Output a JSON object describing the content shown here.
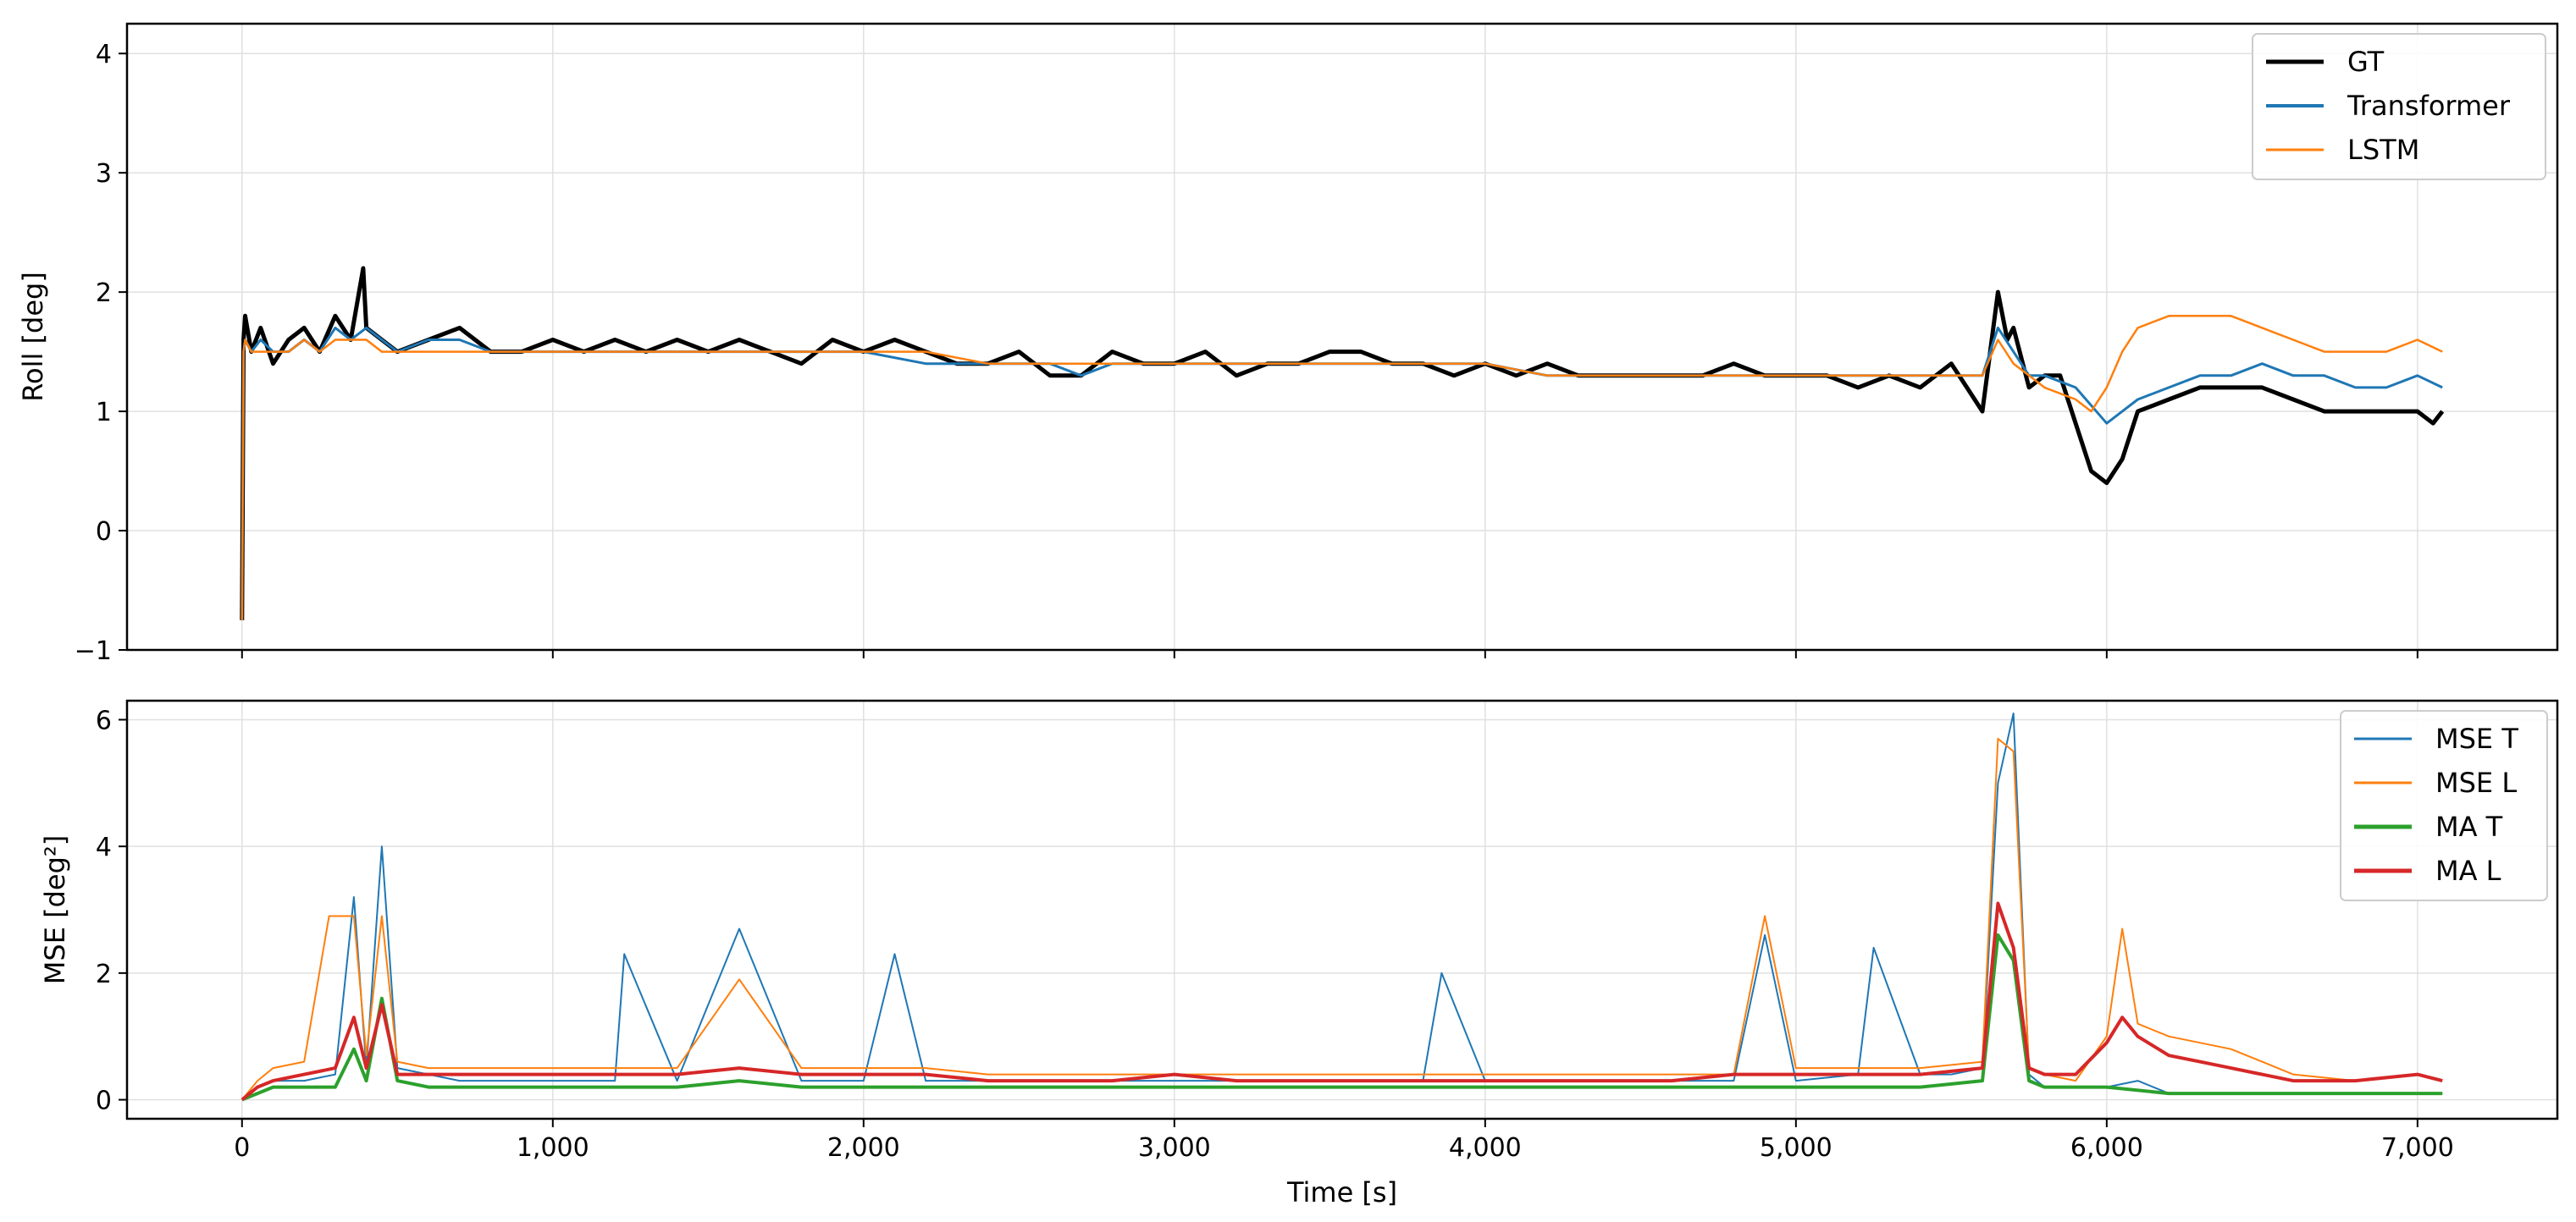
{
  "chart_data": [
    {
      "type": "line",
      "title": "",
      "xlabel": "",
      "ylabel": "Roll [deg]",
      "xlim": [
        -370,
        7450
      ],
      "ylim": [
        -1,
        4.25
      ],
      "grid": true,
      "legend_position": "top-right",
      "x_ticks": [
        0,
        1000,
        2000,
        3000,
        4000,
        5000,
        6000,
        7000
      ],
      "x_tick_labels": [
        "",
        "",
        "",
        "",
        "",
        "",
        "",
        ""
      ],
      "y_ticks": [
        -1,
        0,
        1,
        2,
        3,
        4
      ],
      "y_tick_labels": [
        "−1",
        "0",
        "1",
        "2",
        "3",
        "4"
      ],
      "series": [
        {
          "name": "GT",
          "color": "#000000",
          "x": [
            0,
            5,
            10,
            30,
            60,
            100,
            150,
            200,
            250,
            300,
            350,
            390,
            400,
            450,
            500,
            600,
            700,
            800,
            900,
            1000,
            1100,
            1200,
            1300,
            1400,
            1500,
            1600,
            1700,
            1800,
            1900,
            2000,
            2100,
            2200,
            2300,
            2400,
            2500,
            2600,
            2700,
            2800,
            2900,
            3000,
            3100,
            3200,
            3300,
            3400,
            3500,
            3600,
            3700,
            3800,
            3900,
            4000,
            4100,
            4200,
            4300,
            4400,
            4500,
            4600,
            4700,
            4800,
            4900,
            5000,
            5100,
            5200,
            5300,
            5400,
            5500,
            5550,
            5600,
            5650,
            5680,
            5700,
            5750,
            5800,
            5850,
            5900,
            5950,
            6000,
            6050,
            6100,
            6200,
            6300,
            6400,
            6500,
            6600,
            6700,
            6800,
            6900,
            7000,
            7050,
            7080
          ],
          "y": [
            -0.75,
            1.6,
            1.8,
            1.5,
            1.7,
            1.4,
            1.6,
            1.7,
            1.5,
            1.8,
            1.6,
            2.2,
            1.7,
            1.6,
            1.5,
            1.6,
            1.7,
            1.5,
            1.5,
            1.6,
            1.5,
            1.6,
            1.5,
            1.6,
            1.5,
            1.6,
            1.5,
            1.4,
            1.6,
            1.5,
            1.6,
            1.5,
            1.4,
            1.4,
            1.5,
            1.3,
            1.3,
            1.5,
            1.4,
            1.4,
            1.5,
            1.3,
            1.4,
            1.4,
            1.5,
            1.5,
            1.4,
            1.4,
            1.3,
            1.4,
            1.3,
            1.4,
            1.3,
            1.3,
            1.3,
            1.3,
            1.3,
            1.4,
            1.3,
            1.3,
            1.3,
            1.2,
            1.3,
            1.2,
            1.4,
            1.2,
            1.0,
            2.0,
            1.6,
            1.7,
            1.2,
            1.3,
            1.3,
            0.9,
            0.5,
            0.4,
            0.6,
            1.0,
            1.1,
            1.2,
            1.2,
            1.2,
            1.1,
            1.0,
            1.0,
            1.0,
            1.0,
            0.9,
            1.0
          ]
        },
        {
          "name": "Transformer",
          "color": "#1f77b4",
          "x": [
            0,
            5,
            10,
            30,
            60,
            100,
            150,
            200,
            250,
            300,
            350,
            400,
            450,
            500,
            600,
            700,
            800,
            900,
            1000,
            1200,
            1400,
            1600,
            1800,
            2000,
            2200,
            2400,
            2600,
            2700,
            2800,
            3000,
            3200,
            3400,
            3600,
            3800,
            4000,
            4200,
            4400,
            4600,
            4800,
            5000,
            5200,
            5400,
            5600,
            5650,
            5700,
            5750,
            5800,
            5900,
            6000,
            6050,
            6100,
            6200,
            6300,
            6400,
            6500,
            6600,
            6700,
            6800,
            6900,
            7000,
            7080
          ],
          "y": [
            -0.75,
            1.5,
            1.6,
            1.5,
            1.6,
            1.5,
            1.5,
            1.6,
            1.5,
            1.7,
            1.6,
            1.7,
            1.6,
            1.5,
            1.6,
            1.6,
            1.5,
            1.5,
            1.5,
            1.5,
            1.5,
            1.5,
            1.5,
            1.5,
            1.4,
            1.4,
            1.4,
            1.3,
            1.4,
            1.4,
            1.4,
            1.4,
            1.4,
            1.4,
            1.4,
            1.3,
            1.3,
            1.3,
            1.3,
            1.3,
            1.3,
            1.3,
            1.3,
            1.7,
            1.5,
            1.3,
            1.3,
            1.2,
            0.9,
            1.0,
            1.1,
            1.2,
            1.3,
            1.3,
            1.4,
            1.3,
            1.3,
            1.2,
            1.2,
            1.3,
            1.2
          ]
        },
        {
          "name": "LSTM",
          "color": "#ff7f0e",
          "x": [
            0,
            5,
            10,
            30,
            60,
            100,
            150,
            200,
            250,
            300,
            350,
            400,
            450,
            500,
            600,
            700,
            800,
            900,
            1000,
            1200,
            1400,
            1600,
            1800,
            2000,
            2200,
            2400,
            2600,
            2700,
            2800,
            3000,
            3200,
            3400,
            3600,
            3800,
            4000,
            4200,
            4400,
            4600,
            4800,
            5000,
            5200,
            5400,
            5600,
            5650,
            5700,
            5750,
            5800,
            5900,
            5950,
            6000,
            6050,
            6100,
            6200,
            6300,
            6400,
            6500,
            6600,
            6700,
            6800,
            6900,
            7000,
            7080
          ],
          "y": [
            -0.75,
            1.5,
            1.6,
            1.5,
            1.5,
            1.5,
            1.5,
            1.6,
            1.5,
            1.6,
            1.6,
            1.6,
            1.5,
            1.5,
            1.5,
            1.5,
            1.5,
            1.5,
            1.5,
            1.5,
            1.5,
            1.5,
            1.5,
            1.5,
            1.5,
            1.4,
            1.4,
            1.4,
            1.4,
            1.4,
            1.4,
            1.4,
            1.4,
            1.4,
            1.4,
            1.3,
            1.3,
            1.3,
            1.3,
            1.3,
            1.3,
            1.3,
            1.3,
            1.6,
            1.4,
            1.3,
            1.2,
            1.1,
            1.0,
            1.2,
            1.5,
            1.7,
            1.8,
            1.8,
            1.8,
            1.7,
            1.6,
            1.5,
            1.5,
            1.5,
            1.6,
            1.5
          ]
        }
      ]
    },
    {
      "type": "line",
      "title": "",
      "xlabel": "Time [s]",
      "ylabel": "MSE [deg²]",
      "xlim": [
        -370,
        7450
      ],
      "ylim": [
        -0.3,
        6.3
      ],
      "grid": true,
      "legend_position": "top-right",
      "x_ticks": [
        0,
        1000,
        2000,
        3000,
        4000,
        5000,
        6000,
        7000
      ],
      "x_tick_labels": [
        "0",
        "1,000",
        "2,000",
        "3,000",
        "4,000",
        "5,000",
        "6,000",
        "7,000"
      ],
      "y_ticks": [
        0,
        2,
        4,
        6
      ],
      "y_tick_labels": [
        "0",
        "2",
        "4",
        "6"
      ],
      "series": [
        {
          "name": "MSE T",
          "color": "#1f77b4",
          "x": [
            0,
            50,
            100,
            200,
            300,
            360,
            400,
            450,
            500,
            600,
            700,
            800,
            1000,
            1200,
            1230,
            1400,
            1600,
            1800,
            2000,
            2100,
            2200,
            2400,
            2600,
            2800,
            3000,
            3200,
            3400,
            3600,
            3800,
            3860,
            4000,
            4200,
            4400,
            4600,
            4800,
            4900,
            5000,
            5200,
            5250,
            5400,
            5500,
            5600,
            5650,
            5700,
            5750,
            5800,
            6000,
            6100,
            6200,
            6400,
            6600,
            6800,
            7000,
            7080
          ],
          "y": [
            0.0,
            0.2,
            0.3,
            0.3,
            0.4,
            3.2,
            0.5,
            4.0,
            0.5,
            0.4,
            0.3,
            0.3,
            0.3,
            0.3,
            2.3,
            0.3,
            2.7,
            0.3,
            0.3,
            2.3,
            0.3,
            0.3,
            0.3,
            0.3,
            0.3,
            0.3,
            0.3,
            0.3,
            0.3,
            2.0,
            0.3,
            0.3,
            0.3,
            0.3,
            0.3,
            2.6,
            0.3,
            0.4,
            2.4,
            0.4,
            0.4,
            0.5,
            5.0,
            6.1,
            0.4,
            0.2,
            0.2,
            0.3,
            0.1,
            0.1,
            0.1,
            0.1,
            0.1,
            0.1
          ]
        },
        {
          "name": "MSE L",
          "color": "#ff7f0e",
          "x": [
            0,
            50,
            100,
            200,
            280,
            360,
            400,
            450,
            500,
            600,
            700,
            800,
            1000,
            1200,
            1400,
            1600,
            1800,
            2000,
            2200,
            2400,
            2600,
            2800,
            3000,
            3200,
            3400,
            3600,
            3800,
            4000,
            4200,
            4400,
            4600,
            4800,
            4900,
            5000,
            5200,
            5400,
            5600,
            5650,
            5700,
            5750,
            5800,
            5900,
            6000,
            6050,
            6100,
            6200,
            6300,
            6400,
            6500,
            6600,
            6800,
            7000,
            7080
          ],
          "y": [
            0.0,
            0.3,
            0.5,
            0.6,
            2.9,
            2.9,
            0.7,
            2.9,
            0.6,
            0.5,
            0.5,
            0.5,
            0.5,
            0.5,
            0.5,
            1.9,
            0.5,
            0.5,
            0.5,
            0.4,
            0.4,
            0.4,
            0.4,
            0.4,
            0.4,
            0.4,
            0.4,
            0.4,
            0.4,
            0.4,
            0.4,
            0.4,
            2.9,
            0.5,
            0.5,
            0.5,
            0.6,
            5.7,
            5.5,
            0.5,
            0.4,
            0.3,
            1.0,
            2.7,
            1.2,
            1.0,
            0.9,
            0.8,
            0.6,
            0.4,
            0.3,
            0.4,
            0.3
          ]
        },
        {
          "name": "MA T",
          "color": "#2ca02c",
          "x": [
            0,
            50,
            100,
            200,
            300,
            360,
            400,
            450,
            500,
            600,
            800,
            1000,
            1200,
            1400,
            1600,
            1800,
            2000,
            2200,
            2400,
            2600,
            2800,
            3000,
            3200,
            3400,
            3600,
            3800,
            4000,
            4200,
            4400,
            4600,
            4800,
            5000,
            5200,
            5400,
            5600,
            5650,
            5700,
            5750,
            5800,
            6000,
            6200,
            6400,
            6600,
            6800,
            7000,
            7080
          ],
          "y": [
            0.0,
            0.1,
            0.2,
            0.2,
            0.2,
            0.8,
            0.3,
            1.6,
            0.3,
            0.2,
            0.2,
            0.2,
            0.2,
            0.2,
            0.3,
            0.2,
            0.2,
            0.2,
            0.2,
            0.2,
            0.2,
            0.2,
            0.2,
            0.2,
            0.2,
            0.2,
            0.2,
            0.2,
            0.2,
            0.2,
            0.2,
            0.2,
            0.2,
            0.2,
            0.3,
            2.6,
            2.2,
            0.3,
            0.2,
            0.2,
            0.1,
            0.1,
            0.1,
            0.1,
            0.1,
            0.1
          ]
        },
        {
          "name": "MA L",
          "color": "#d62728",
          "x": [
            0,
            50,
            100,
            200,
            300,
            360,
            400,
            450,
            500,
            600,
            800,
            1000,
            1200,
            1400,
            1600,
            1800,
            2000,
            2200,
            2400,
            2600,
            2800,
            3000,
            3200,
            3400,
            3600,
            3800,
            4000,
            4200,
            4400,
            4600,
            4800,
            5000,
            5200,
            5400,
            5600,
            5650,
            5700,
            5750,
            5800,
            5900,
            6000,
            6050,
            6100,
            6200,
            6300,
            6400,
            6500,
            6600,
            6800,
            7000,
            7080
          ],
          "y": [
            0.0,
            0.2,
            0.3,
            0.4,
            0.5,
            1.3,
            0.5,
            1.5,
            0.4,
            0.4,
            0.4,
            0.4,
            0.4,
            0.4,
            0.5,
            0.4,
            0.4,
            0.4,
            0.3,
            0.3,
            0.3,
            0.4,
            0.3,
            0.3,
            0.3,
            0.3,
            0.3,
            0.3,
            0.3,
            0.3,
            0.4,
            0.4,
            0.4,
            0.4,
            0.5,
            3.1,
            2.4,
            0.5,
            0.4,
            0.4,
            0.9,
            1.3,
            1.0,
            0.7,
            0.6,
            0.5,
            0.4,
            0.3,
            0.3,
            0.4,
            0.3
          ]
        }
      ]
    }
  ]
}
